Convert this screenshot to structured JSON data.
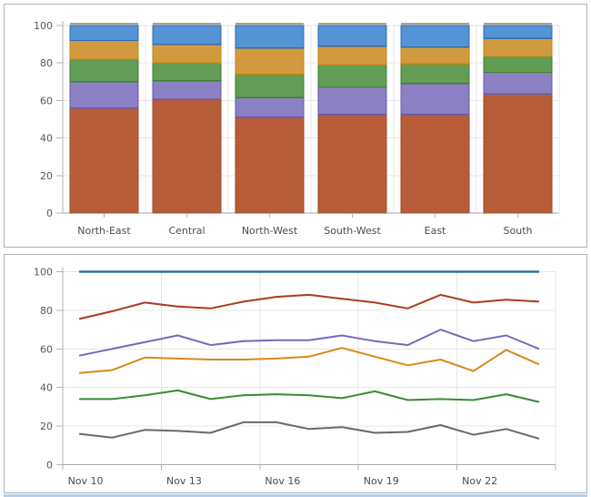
{
  "page": {
    "background": "#ffffff",
    "panel_border_color": "#b0b0b0",
    "bottom_accent_color": "#b7cfe8",
    "gridline_color": "#e7e7e7",
    "axis_line_color": "#b3b3b3",
    "baseline_color": "#a6a6a6",
    "tick_label_color": "#55555e",
    "category_label_color": "#4a4a54"
  },
  "chart_data": [
    {
      "type": "bar",
      "stacked": true,
      "title": "",
      "xlabel": "",
      "ylabel": "",
      "ylim": [
        0,
        100
      ],
      "y_ticks": [
        0,
        20,
        40,
        60,
        80,
        100
      ],
      "grid": true,
      "legend": false,
      "categories": [
        "North-East",
        "Central",
        "North-West",
        "South-West",
        "East",
        "South"
      ],
      "bar_cap_color": "#a2a2a2",
      "series": [
        {
          "name": "series-brick",
          "color": "#b75d3a",
          "border_color": "#9c4a26",
          "values": [
            56,
            60.5,
            51,
            52.5,
            52.5,
            63.5
          ]
        },
        {
          "name": "series-purple",
          "color": "#8b80c4",
          "border_color": "#675aa8",
          "values": [
            14,
            10,
            10.5,
            14.5,
            16.5,
            11.5
          ]
        },
        {
          "name": "series-green",
          "color": "#639c55",
          "border_color": "#3f7d33",
          "values": [
            12,
            9.5,
            12.5,
            12,
            10.5,
            8.5
          ]
        },
        {
          "name": "series-orange",
          "color": "#d29a3f",
          "border_color": "#bc8511",
          "values": [
            10,
            10,
            14,
            10,
            9,
            9.5
          ]
        },
        {
          "name": "series-blue",
          "color": "#5494d4",
          "border_color": "#2e6cb5",
          "values": [
            8,
            10,
            12,
            11,
            11.5,
            7
          ]
        }
      ]
    },
    {
      "type": "line",
      "title": "",
      "xlabel": "",
      "ylabel": "",
      "ylim": [
        0,
        100
      ],
      "y_ticks": [
        0,
        20,
        40,
        60,
        80,
        100
      ],
      "grid": true,
      "legend": false,
      "x": [
        "Nov 10",
        "Nov 11",
        "Nov 12",
        "Nov 13",
        "Nov 14",
        "Nov 15",
        "Nov 16",
        "Nov 17",
        "Nov 18",
        "Nov 19",
        "Nov 20",
        "Nov 21",
        "Nov 22",
        "Nov 23",
        "Nov 24"
      ],
      "x_tick_labels": [
        "Nov 10",
        "Nov 13",
        "Nov 16",
        "Nov 19",
        "Nov 22"
      ],
      "x_tick_every": 3,
      "series": [
        {
          "name": "series-gray",
          "color": "#696969",
          "width": 2,
          "values": [
            16,
            14,
            18,
            17.5,
            16.5,
            22,
            22,
            18.5,
            19.5,
            16.5,
            17,
            20.5,
            15.5,
            18.5,
            13.5
          ]
        },
        {
          "name": "series-green",
          "color": "#398b35",
          "width": 2,
          "values": [
            34,
            34,
            36,
            38.5,
            34,
            36,
            36.5,
            36,
            34.5,
            38,
            33.5,
            34,
            33.5,
            36.5,
            32.5
          ]
        },
        {
          "name": "series-orange",
          "color": "#d9891b",
          "width": 2,
          "values": [
            47.5,
            49,
            55.5,
            55,
            54.5,
            54.5,
            55,
            56,
            60.5,
            56,
            51.5,
            54.5,
            48.5,
            59.5,
            52
          ]
        },
        {
          "name": "series-purple",
          "color": "#7668ba",
          "width": 2,
          "values": [
            56.5,
            60,
            63.5,
            67,
            62,
            64,
            64.5,
            64.5,
            67,
            64,
            62,
            70,
            64,
            67,
            60
          ]
        },
        {
          "name": "series-red",
          "color": "#aa3b1e",
          "width": 2,
          "values": [
            75.5,
            79.5,
            84,
            82,
            81,
            84.5,
            87,
            88,
            86,
            84,
            81,
            88,
            84,
            85.5,
            84.5
          ]
        },
        {
          "name": "series-blue",
          "color": "#2e6f9e",
          "width": 2.5,
          "values": [
            100,
            100,
            100,
            100,
            100,
            100,
            100,
            100,
            100,
            100,
            100,
            100,
            100,
            100,
            100
          ]
        }
      ]
    }
  ]
}
